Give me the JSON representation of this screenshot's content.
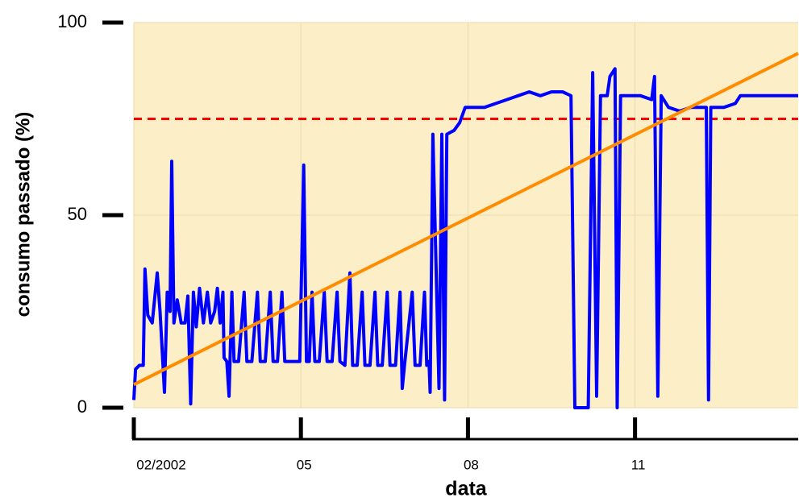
{
  "chart_data": {
    "type": "line",
    "x_label": "data",
    "y_label": "consumo passado (%)",
    "xlim": [
      2,
      13.93
    ],
    "ylim": [
      0,
      100
    ],
    "xticks": [
      {
        "value": 2,
        "label": "02/2002"
      },
      {
        "value": 5,
        "label": "05"
      },
      {
        "value": 8,
        "label": "08"
      },
      {
        "value": 11,
        "label": "11"
      }
    ],
    "yticks": [
      0,
      50,
      100
    ],
    "grid": true,
    "background": "#fcefc8",
    "grid_color": "#e9dbab",
    "series": [
      {
        "color": "#ff0000",
        "dashed": true,
        "x": [
          2,
          13.93
        ],
        "values": [
          75,
          75
        ]
      },
      {
        "color": "#0000ff",
        "dashed": false,
        "x": [
          2.0,
          2.03,
          2.1,
          2.17,
          2.2,
          2.25,
          2.33,
          2.42,
          2.47,
          2.55,
          2.6,
          2.65,
          2.68,
          2.72,
          2.78,
          2.85,
          2.92,
          2.97,
          3.02,
          3.07,
          3.12,
          3.18,
          3.25,
          3.32,
          3.38,
          3.45,
          3.5,
          3.55,
          3.6,
          3.62,
          3.67,
          3.71,
          3.76,
          3.8,
          3.88,
          3.98,
          4.03,
          4.12,
          4.22,
          4.27,
          4.36,
          4.45,
          4.5,
          4.58,
          4.66,
          4.71,
          4.85,
          4.98,
          5.05,
          5.1,
          5.15,
          5.2,
          5.25,
          5.33,
          5.42,
          5.47,
          5.56,
          5.65,
          5.7,
          5.79,
          5.88,
          5.93,
          6.01,
          6.1,
          6.15,
          6.24,
          6.33,
          6.38,
          6.46,
          6.55,
          6.6,
          6.7,
          6.78,
          6.82,
          6.86,
          7.0,
          7.05,
          7.14,
          7.22,
          7.26,
          7.3,
          7.32,
          7.37,
          7.48,
          7.53,
          7.58,
          7.62,
          7.75,
          7.85,
          7.95,
          8.1,
          8.3,
          8.5,
          8.7,
          8.9,
          9.1,
          9.3,
          9.5,
          9.7,
          9.85,
          9.92,
          10.16,
          10.24,
          10.31,
          10.38,
          10.5,
          10.55,
          10.64,
          10.68,
          10.74,
          10.9,
          11.1,
          11.3,
          11.35,
          11.41,
          11.47,
          11.6,
          11.8,
          12.0,
          12.2,
          12.28,
          12.32,
          12.36,
          12.6,
          12.8,
          12.89,
          13.2,
          13.5,
          13.93
        ],
        "values": [
          2,
          10,
          11,
          11,
          36,
          24,
          22,
          35,
          25,
          4,
          30,
          25,
          64,
          22,
          28,
          22,
          22,
          29,
          1,
          30,
          21,
          31,
          22,
          30,
          22,
          25,
          31,
          22,
          30,
          13,
          12,
          3,
          30,
          12,
          12,
          30,
          12,
          12,
          30,
          12,
          12,
          30,
          12,
          12,
          30,
          12,
          12,
          12,
          63,
          12,
          12,
          30,
          12,
          12,
          30,
          12,
          12,
          30,
          12,
          11,
          35,
          11,
          11,
          30,
          11,
          11,
          30,
          11,
          11,
          30,
          11,
          11,
          30,
          5,
          11,
          30,
          11,
          11,
          30,
          11,
          12,
          4,
          71,
          5,
          71,
          2,
          71,
          72,
          74,
          78,
          78,
          78,
          79,
          80,
          81,
          82,
          81,
          82,
          82,
          81,
          0,
          0,
          87,
          3,
          81,
          81,
          86,
          88,
          0,
          81,
          81,
          81,
          80,
          86,
          3,
          81,
          78,
          77,
          78,
          78,
          78,
          2,
          78,
          78,
          79,
          81,
          81,
          81,
          81
        ]
      },
      {
        "color": "#ff8c00",
        "dashed": false,
        "x": [
          2,
          13.93
        ],
        "values": [
          6,
          92
        ]
      }
    ]
  }
}
